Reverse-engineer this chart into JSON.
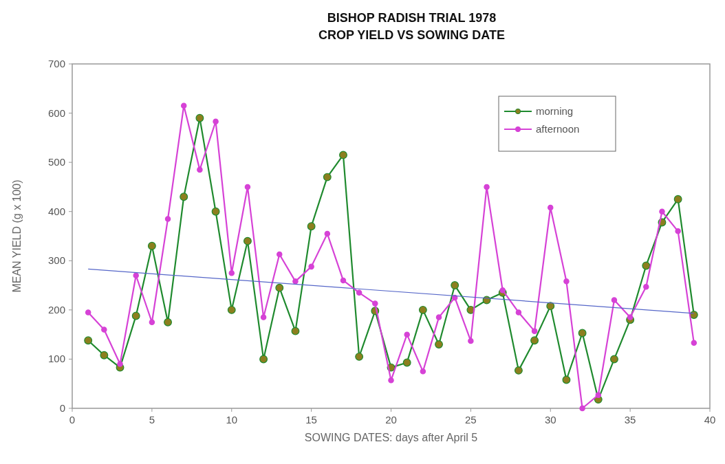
{
  "chart_data": {
    "type": "line",
    "title": "BISHOP RADISH TRIAL 1978\nCROP  YIELD  VS SOWING DATE",
    "xlabel": "SOWING DATES:  days after April 5",
    "ylabel": "MEAN YIELD  (g x 100)",
    "x": [
      1,
      2,
      3,
      4,
      5,
      6,
      7,
      8,
      9,
      10,
      11,
      12,
      13,
      14,
      15,
      16,
      17,
      18,
      19,
      20,
      21,
      22,
      23,
      24,
      25,
      26,
      27,
      28,
      29,
      30,
      31,
      32,
      33,
      34,
      35,
      36,
      37,
      38,
      39
    ],
    "series": [
      {
        "name": "morning",
        "color": "#1f8a2e",
        "values": [
          138,
          108,
          83,
          188,
          330,
          175,
          430,
          590,
          400,
          200,
          340,
          100,
          245,
          157,
          370,
          470,
          515,
          105,
          198,
          83,
          93,
          200,
          130,
          250,
          200,
          220,
          235,
          77,
          138,
          208,
          58,
          153,
          18,
          100,
          180,
          290,
          378,
          425,
          190
        ]
      },
      {
        "name": "afternoon",
        "color": "#d642d6",
        "values": [
          195,
          160,
          90,
          270,
          175,
          385,
          615,
          485,
          583,
          275,
          450,
          185,
          313,
          258,
          288,
          355,
          260,
          235,
          213,
          57,
          150,
          75,
          185,
          225,
          137,
          450,
          240,
          195,
          157,
          408,
          258,
          0,
          27,
          220,
          185,
          247,
          400,
          360,
          133
        ]
      },
      {
        "type": "line",
        "color": "#5566c8",
        "x": [
          1,
          39
        ],
        "values": [
          283,
          193
        ],
        "marker": "none"
      }
    ],
    "xlim": [
      0,
      40
    ],
    "xticks": [
      0,
      5,
      10,
      15,
      20,
      25,
      30,
      35,
      40
    ],
    "ylim": [
      0,
      700
    ],
    "yticks": [
      0,
      100,
      200,
      300,
      400,
      500,
      600,
      700
    ],
    "marker": "circle",
    "legend": "top right",
    "grid": false
  }
}
